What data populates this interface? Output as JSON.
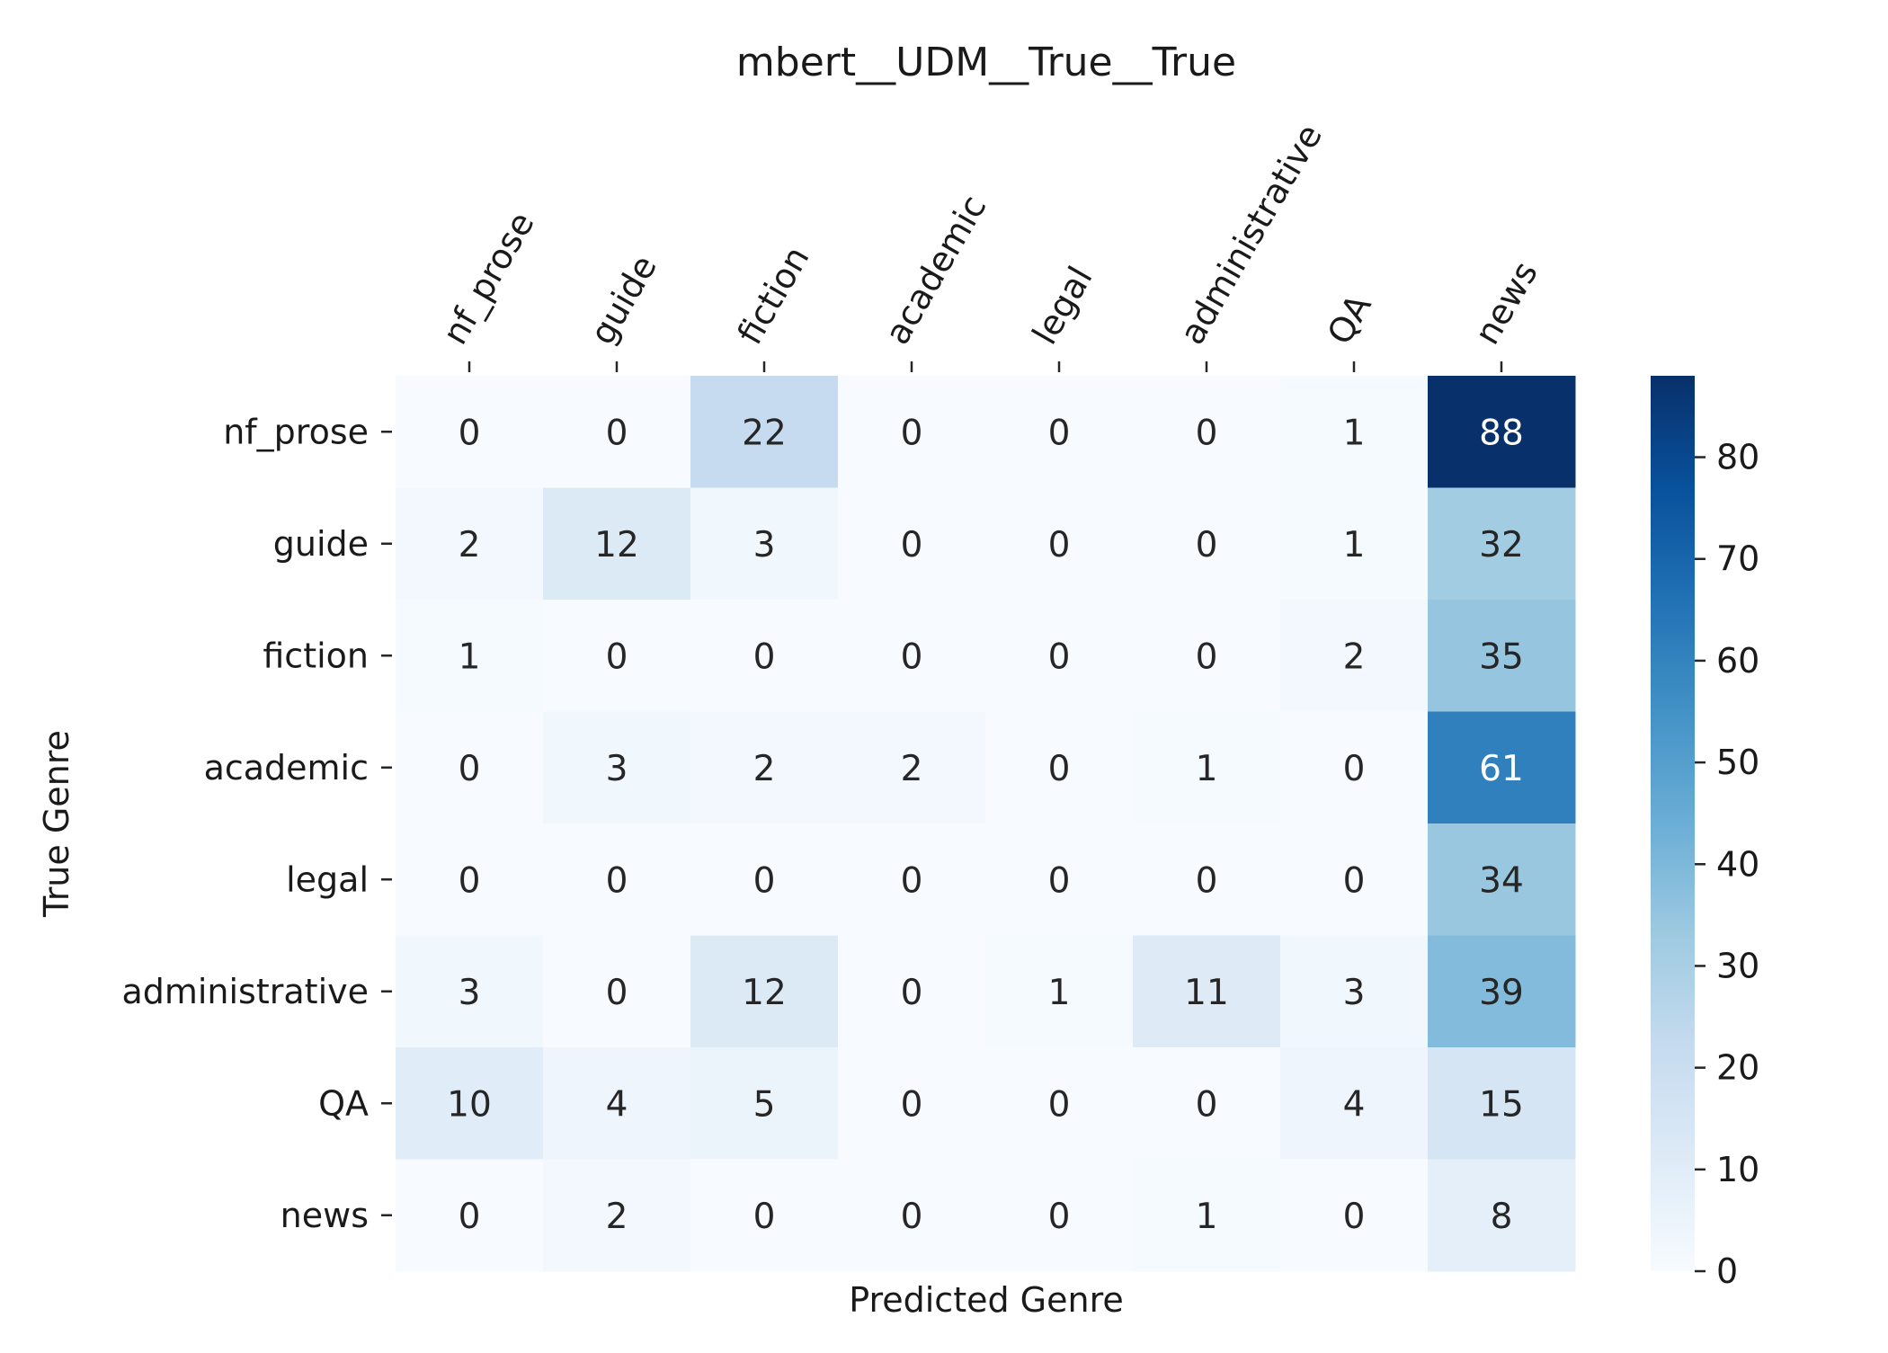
{
  "chart_data": {
    "type": "heatmap",
    "title": "mbert__UDM__True__True",
    "xlabel": "Predicted Genre",
    "ylabel": "True Genre",
    "x_categories": [
      "nf_prose",
      "guide",
      "fiction",
      "academic",
      "legal",
      "administrative",
      "QA",
      "news"
    ],
    "y_categories": [
      "nf_prose",
      "guide",
      "fiction",
      "academic",
      "legal",
      "administrative",
      "QA",
      "news"
    ],
    "values": [
      [
        0,
        0,
        22,
        0,
        0,
        0,
        1,
        88
      ],
      [
        2,
        12,
        3,
        0,
        0,
        0,
        1,
        32
      ],
      [
        1,
        0,
        0,
        0,
        0,
        0,
        2,
        35
      ],
      [
        0,
        3,
        2,
        2,
        0,
        1,
        0,
        61
      ],
      [
        0,
        0,
        0,
        0,
        0,
        0,
        0,
        34
      ],
      [
        3,
        0,
        12,
        0,
        1,
        11,
        3,
        39
      ],
      [
        10,
        4,
        5,
        0,
        0,
        0,
        4,
        15
      ],
      [
        0,
        2,
        0,
        0,
        0,
        1,
        0,
        8
      ]
    ],
    "colormap": "Blues",
    "colorbar": {
      "min": 0,
      "max": 88,
      "ticks": [
        0,
        10,
        20,
        30,
        40,
        50,
        60,
        70,
        80
      ]
    },
    "x_axis_position": "top",
    "grid": false,
    "cell_annotations": true
  }
}
